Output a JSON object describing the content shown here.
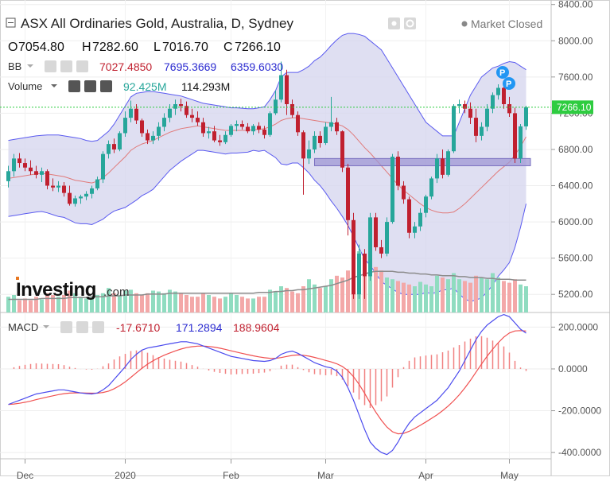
{
  "header": {
    "title": "ASX All Ordinaries Gold, Australia, D, Sydney",
    "market_status": "Market Closed",
    "ohlc": [
      {
        "label": "O",
        "value": "7054.80"
      },
      {
        "label": "H",
        "value": "7282.60"
      },
      {
        "label": "L",
        "value": "7016.70"
      },
      {
        "label": "C",
        "value": "7266.10"
      }
    ]
  },
  "indicators": {
    "bb": {
      "label": "BB",
      "middle": "7027.4850",
      "upper": "7695.3669",
      "lower": "6359.6030"
    },
    "volume": {
      "label": "Volume",
      "value1": "92.425M",
      "value2": "114.293M"
    },
    "macd": {
      "label": "MACD",
      "hist": "-17.6710",
      "macd": "171.2894",
      "signal": "188.9604"
    }
  },
  "logo": {
    "text": "Investing",
    "suffix": ".com"
  },
  "price_tag": "7266.10",
  "colors": {
    "up": "#26a69a",
    "down": "#c0202f",
    "bb_line": "#5a5af0",
    "bb_fill": "#d4d4ee",
    "bb_mid": "#e07a7a",
    "vol_up": "#8fdcc0",
    "vol_down": "#f3a8a8",
    "vol_ma": "#8c8c8c",
    "macd_line": "#4a4aee",
    "signal_line": "#f05050",
    "hist": "#f08080",
    "last_price": "#2ecc40",
    "zone": "#9f97d4",
    "marker": "#2196f3"
  },
  "chart_data": {
    "type": "candlestick",
    "x_ticks": [
      "Dec",
      "2020",
      "Feb",
      "Mar",
      "Apr",
      "May"
    ],
    "price_axis": {
      "ticks": [
        "8400.00",
        "8000.00",
        "7600.00",
        "7200.00",
        "6800.00",
        "6400.00",
        "6000.00",
        "5600.00",
        "5200.00"
      ],
      "ylim": [
        5000,
        8450
      ]
    },
    "macd_axis": {
      "ticks": [
        "200.0000",
        "0.0000",
        "-200.0000",
        "-400.0000"
      ],
      "ylim": [
        -430,
        270
      ]
    },
    "support_zone": {
      "low": 6620,
      "high": 6700
    },
    "last_price": 7266.1,
    "candles": [
      {
        "o": 6450,
        "h": 6620,
        "l": 6380,
        "c": 6560
      },
      {
        "o": 6560,
        "h": 6750,
        "l": 6500,
        "c": 6700
      },
      {
        "o": 6700,
        "h": 6760,
        "l": 6600,
        "c": 6650
      },
      {
        "o": 6650,
        "h": 6700,
        "l": 6560,
        "c": 6600
      },
      {
        "o": 6600,
        "h": 6680,
        "l": 6520,
        "c": 6560
      },
      {
        "o": 6560,
        "h": 6620,
        "l": 6480,
        "c": 6520
      },
      {
        "o": 6520,
        "h": 6600,
        "l": 6440,
        "c": 6560
      },
      {
        "o": 6560,
        "h": 6580,
        "l": 6360,
        "c": 6400
      },
      {
        "o": 6400,
        "h": 6480,
        "l": 6340,
        "c": 6380
      },
      {
        "o": 6380,
        "h": 6450,
        "l": 6330,
        "c": 6400
      },
      {
        "o": 6400,
        "h": 6440,
        "l": 6280,
        "c": 6320
      },
      {
        "o": 6320,
        "h": 6400,
        "l": 6180,
        "c": 6200
      },
      {
        "o": 6200,
        "h": 6290,
        "l": 6170,
        "c": 6260
      },
      {
        "o": 6260,
        "h": 6300,
        "l": 6200,
        "c": 6280
      },
      {
        "o": 6280,
        "h": 6340,
        "l": 6240,
        "c": 6310
      },
      {
        "o": 6310,
        "h": 6400,
        "l": 6260,
        "c": 6370
      },
      {
        "o": 6370,
        "h": 6500,
        "l": 6350,
        "c": 6470
      },
      {
        "o": 6470,
        "h": 6780,
        "l": 6430,
        "c": 6750
      },
      {
        "o": 6750,
        "h": 6900,
        "l": 6700,
        "c": 6860
      },
      {
        "o": 6860,
        "h": 6920,
        "l": 6760,
        "c": 6800
      },
      {
        "o": 6800,
        "h": 7000,
        "l": 6780,
        "c": 6980
      },
      {
        "o": 6980,
        "h": 7220,
        "l": 6940,
        "c": 7150
      },
      {
        "o": 7150,
        "h": 7340,
        "l": 7100,
        "c": 7250
      },
      {
        "o": 7250,
        "h": 7300,
        "l": 7080,
        "c": 7120
      },
      {
        "o": 7120,
        "h": 7140,
        "l": 6940,
        "c": 6980
      },
      {
        "o": 6980,
        "h": 7020,
        "l": 6860,
        "c": 6900
      },
      {
        "o": 6900,
        "h": 7000,
        "l": 6860,
        "c": 6950
      },
      {
        "o": 6950,
        "h": 7100,
        "l": 6900,
        "c": 7050
      },
      {
        "o": 7050,
        "h": 7200,
        "l": 7000,
        "c": 7150
      },
      {
        "o": 7150,
        "h": 7300,
        "l": 7100,
        "c": 7250
      },
      {
        "o": 7250,
        "h": 7350,
        "l": 7180,
        "c": 7300
      },
      {
        "o": 7300,
        "h": 7360,
        "l": 7220,
        "c": 7280
      },
      {
        "o": 7280,
        "h": 7330,
        "l": 7150,
        "c": 7180
      },
      {
        "o": 7180,
        "h": 7250,
        "l": 7100,
        "c": 7150
      },
      {
        "o": 7150,
        "h": 7220,
        "l": 7060,
        "c": 7100
      },
      {
        "o": 7100,
        "h": 7150,
        "l": 6940,
        "c": 6980
      },
      {
        "o": 6980,
        "h": 7050,
        "l": 6920,
        "c": 7000
      },
      {
        "o": 7000,
        "h": 7060,
        "l": 6880,
        "c": 6900
      },
      {
        "o": 6900,
        "h": 6960,
        "l": 6840,
        "c": 6880
      },
      {
        "o": 6880,
        "h": 7000,
        "l": 6860,
        "c": 6960
      },
      {
        "o": 6960,
        "h": 7080,
        "l": 6940,
        "c": 7060
      },
      {
        "o": 7060,
        "h": 7120,
        "l": 7000,
        "c": 7080
      },
      {
        "o": 7080,
        "h": 7120,
        "l": 7020,
        "c": 7050
      },
      {
        "o": 7050,
        "h": 7090,
        "l": 6980,
        "c": 7000
      },
      {
        "o": 7000,
        "h": 7080,
        "l": 6960,
        "c": 7060
      },
      {
        "o": 7060,
        "h": 7100,
        "l": 6980,
        "c": 7020
      },
      {
        "o": 7020,
        "h": 7060,
        "l": 6920,
        "c": 6960
      },
      {
        "o": 6960,
        "h": 7220,
        "l": 6940,
        "c": 7200
      },
      {
        "o": 7200,
        "h": 7450,
        "l": 7180,
        "c": 7350
      },
      {
        "o": 7350,
        "h": 7770,
        "l": 7320,
        "c": 7620
      },
      {
        "o": 7620,
        "h": 7680,
        "l": 7180,
        "c": 7300
      },
      {
        "o": 7300,
        "h": 7350,
        "l": 7150,
        "c": 7180
      },
      {
        "o": 7180,
        "h": 7220,
        "l": 6950,
        "c": 6990
      },
      {
        "o": 6990,
        "h": 7010,
        "l": 6300,
        "c": 6700
      },
      {
        "o": 6700,
        "h": 6900,
        "l": 6640,
        "c": 6800
      },
      {
        "o": 6800,
        "h": 7000,
        "l": 6760,
        "c": 6950
      },
      {
        "o": 6950,
        "h": 7000,
        "l": 6820,
        "c": 6870
      },
      {
        "o": 6870,
        "h": 7100,
        "l": 6850,
        "c": 7050
      },
      {
        "o": 7050,
        "h": 7380,
        "l": 7000,
        "c": 7100
      },
      {
        "o": 7100,
        "h": 7150,
        "l": 6960,
        "c": 7000
      },
      {
        "o": 7000,
        "h": 7010,
        "l": 6550,
        "c": 6600
      },
      {
        "o": 6600,
        "h": 6640,
        "l": 5850,
        "c": 6020
      },
      {
        "o": 6020,
        "h": 6100,
        "l": 5150,
        "c": 5200
      },
      {
        "o": 5200,
        "h": 5750,
        "l": 5150,
        "c": 5650
      },
      {
        "o": 5650,
        "h": 5700,
        "l": 5150,
        "c": 5400
      },
      {
        "o": 5400,
        "h": 6100,
        "l": 5350,
        "c": 6050
      },
      {
        "o": 6050,
        "h": 6100,
        "l": 5680,
        "c": 5720
      },
      {
        "o": 5720,
        "h": 5800,
        "l": 5600,
        "c": 5650
      },
      {
        "o": 5650,
        "h": 6050,
        "l": 5620,
        "c": 6000
      },
      {
        "o": 6000,
        "h": 6750,
        "l": 5980,
        "c": 6720
      },
      {
        "o": 6720,
        "h": 6780,
        "l": 6350,
        "c": 6400
      },
      {
        "o": 6400,
        "h": 6450,
        "l": 6200,
        "c": 6250
      },
      {
        "o": 6250,
        "h": 6280,
        "l": 5820,
        "c": 5880
      },
      {
        "o": 5880,
        "h": 6000,
        "l": 5820,
        "c": 5950
      },
      {
        "o": 5950,
        "h": 6150,
        "l": 5900,
        "c": 6100
      },
      {
        "o": 6100,
        "h": 6300,
        "l": 6050,
        "c": 6280
      },
      {
        "o": 6280,
        "h": 6500,
        "l": 6250,
        "c": 6480
      },
      {
        "o": 6480,
        "h": 6750,
        "l": 6430,
        "c": 6700
      },
      {
        "o": 6700,
        "h": 6800,
        "l": 6480,
        "c": 6520
      },
      {
        "o": 6520,
        "h": 6800,
        "l": 6500,
        "c": 6780
      },
      {
        "o": 6780,
        "h": 7300,
        "l": 6760,
        "c": 7280
      },
      {
        "o": 7280,
        "h": 7350,
        "l": 7200,
        "c": 7300
      },
      {
        "o": 7300,
        "h": 7340,
        "l": 7200,
        "c": 7250
      },
      {
        "o": 7250,
        "h": 7320,
        "l": 7080,
        "c": 7150
      },
      {
        "o": 7150,
        "h": 7250,
        "l": 6880,
        "c": 6950
      },
      {
        "o": 6950,
        "h": 7100,
        "l": 6900,
        "c": 7050
      },
      {
        "o": 7050,
        "h": 7300,
        "l": 7000,
        "c": 7250
      },
      {
        "o": 7250,
        "h": 7430,
        "l": 7200,
        "c": 7400
      },
      {
        "o": 7400,
        "h": 7520,
        "l": 7350,
        "c": 7480
      },
      {
        "o": 7480,
        "h": 7540,
        "l": 7250,
        "c": 7300
      },
      {
        "o": 7300,
        "h": 7380,
        "l": 7160,
        "c": 7200
      },
      {
        "o": 7200,
        "h": 7260,
        "l": 6650,
        "c": 6700
      },
      {
        "o": 6700,
        "h": 7080,
        "l": 6650,
        "c": 7054.8
      },
      {
        "o": 7054.8,
        "h": 7282.6,
        "l": 7016.7,
        "c": 7266.1
      }
    ],
    "bb_upper": [
      6900,
      6910,
      6920,
      6930,
      6940,
      6950,
      6955,
      6960,
      6960,
      6960,
      6950,
      6940,
      6930,
      6920,
      6900,
      6890,
      6900,
      6950,
      7000,
      7080,
      7180,
      7280,
      7380,
      7420,
      7430,
      7440,
      7440,
      7430,
      7420,
      7410,
      7400,
      7390,
      7370,
      7350,
      7330,
      7310,
      7300,
      7290,
      7280,
      7270,
      7260,
      7260,
      7255,
      7250,
      7250,
      7260,
      7270,
      7350,
      7450,
      7600,
      7650,
      7650,
      7650,
      7680,
      7720,
      7780,
      7820,
      7880,
      7950,
      8010,
      8060,
      8080,
      8080,
      8070,
      8050,
      8000,
      7950,
      7900,
      7800,
      7700,
      7600,
      7500,
      7400,
      7300,
      7200,
      7100,
      7050,
      7000,
      6950,
      6950,
      6950,
      7100,
      7250,
      7400,
      7500,
      7600,
      7650,
      7700,
      7720,
      7750,
      7770,
      7760,
      7720,
      7680
    ],
    "bb_mid": [
      6480,
      6490,
      6500,
      6510,
      6520,
      6530,
      6535,
      6530,
      6520,
      6510,
      6500,
      6480,
      6460,
      6450,
      6440,
      6430,
      6450,
      6490,
      6540,
      6600,
      6660,
      6720,
      6790,
      6830,
      6860,
      6880,
      6900,
      6930,
      6960,
      6990,
      7010,
      7030,
      7040,
      7050,
      7060,
      7050,
      7040,
      7030,
      7020,
      7010,
      7010,
      7010,
      7010,
      7010,
      7020,
      7020,
      7030,
      7050,
      7080,
      7120,
      7140,
      7150,
      7150,
      7140,
      7130,
      7120,
      7110,
      7100,
      7090,
      7080,
      7060,
      7020,
      6960,
      6890,
      6820,
      6760,
      6690,
      6620,
      6550,
      6480,
      6410,
      6350,
      6300,
      6250,
      6200,
      6160,
      6130,
      6110,
      6100,
      6100,
      6110,
      6150,
      6200,
      6260,
      6320,
      6380,
      6440,
      6500,
      6560,
      6610,
      6660,
      6740,
      6830,
      6940
    ],
    "bb_lower": [
      6060,
      6070,
      6080,
      6090,
      6100,
      6110,
      6115,
      6100,
      6080,
      6060,
      6050,
      6020,
      5990,
      5980,
      5980,
      5970,
      6000,
      6030,
      6080,
      6120,
      6140,
      6160,
      6200,
      6240,
      6290,
      6320,
      6360,
      6430,
      6500,
      6570,
      6620,
      6670,
      6710,
      6750,
      6790,
      6790,
      6780,
      6770,
      6760,
      6750,
      6760,
      6760,
      6765,
      6770,
      6790,
      6780,
      6790,
      6750,
      6710,
      6640,
      6630,
      6650,
      6650,
      6600,
      6540,
      6460,
      6400,
      6320,
      6230,
      6150,
      6060,
      5960,
      5840,
      5710,
      5590,
      5520,
      5430,
      5340,
      5300,
      5260,
      5220,
      5200,
      5200,
      5200,
      5200,
      5220,
      5210,
      5220,
      5250,
      5250,
      5270,
      5200,
      5150,
      5120,
      5140,
      5160,
      5230,
      5300,
      5400,
      5470,
      5550,
      5720,
      5940,
      6200
    ],
    "volume": [
      18,
      20,
      14,
      16,
      14,
      18,
      15,
      22,
      20,
      18,
      20,
      25,
      22,
      18,
      16,
      18,
      20,
      22,
      28,
      22,
      20,
      25,
      26,
      22,
      20,
      22,
      25,
      24,
      22,
      26,
      24,
      22,
      20,
      18,
      18,
      22,
      20,
      18,
      16,
      18,
      22,
      20,
      18,
      16,
      16,
      18,
      18,
      26,
      24,
      30,
      28,
      24,
      22,
      30,
      38,
      32,
      28,
      30,
      38,
      42,
      40,
      48,
      65,
      70,
      60,
      55,
      52,
      48,
      40,
      38,
      36,
      34,
      32,
      30,
      35,
      32,
      30,
      42,
      40,
      38,
      45,
      38,
      36,
      34,
      42,
      40,
      38,
      45,
      40,
      36,
      34,
      38,
      32,
      30
    ],
    "volume_ma": [
      15,
      15,
      15,
      15,
      15,
      15,
      16,
      16,
      16,
      16,
      16,
      17,
      17,
      17,
      17,
      18,
      18,
      18,
      19,
      19,
      19,
      20,
      20,
      20,
      20,
      21,
      21,
      21,
      21,
      22,
      22,
      22,
      22,
      22,
      22,
      22,
      22,
      22,
      22,
      22,
      22,
      22,
      22,
      22,
      22,
      23,
      23,
      23,
      24,
      24,
      25,
      25,
      26,
      26,
      27,
      28,
      29,
      30,
      31,
      33,
      35,
      37,
      40,
      42,
      44,
      46,
      47,
      47,
      47,
      47,
      46,
      46,
      45,
      45,
      44,
      44,
      43,
      43,
      42,
      42,
      42,
      41,
      41,
      40,
      40,
      40,
      39,
      39,
      38,
      38,
      38,
      37,
      37,
      37
    ],
    "macd": [
      -170,
      -160,
      -150,
      -140,
      -130,
      -120,
      -115,
      -110,
      -105,
      -100,
      -100,
      -105,
      -110,
      -115,
      -118,
      -120,
      -115,
      -100,
      -80,
      -50,
      -20,
      10,
      45,
      70,
      90,
      100,
      105,
      110,
      115,
      120,
      125,
      130,
      130,
      125,
      120,
      110,
      100,
      90,
      80,
      70,
      60,
      55,
      50,
      45,
      40,
      38,
      36,
      40,
      50,
      70,
      80,
      85,
      75,
      60,
      45,
      30,
      20,
      10,
      5,
      -10,
      -40,
      -90,
      -150,
      -220,
      -290,
      -350,
      -380,
      -400,
      -410,
      -390,
      -350,
      -300,
      -260,
      -230,
      -210,
      -190,
      -170,
      -150,
      -120,
      -90,
      -50,
      -10,
      40,
      90,
      140,
      180,
      210,
      230,
      250,
      260,
      250,
      220,
      190,
      171
    ]
  }
}
